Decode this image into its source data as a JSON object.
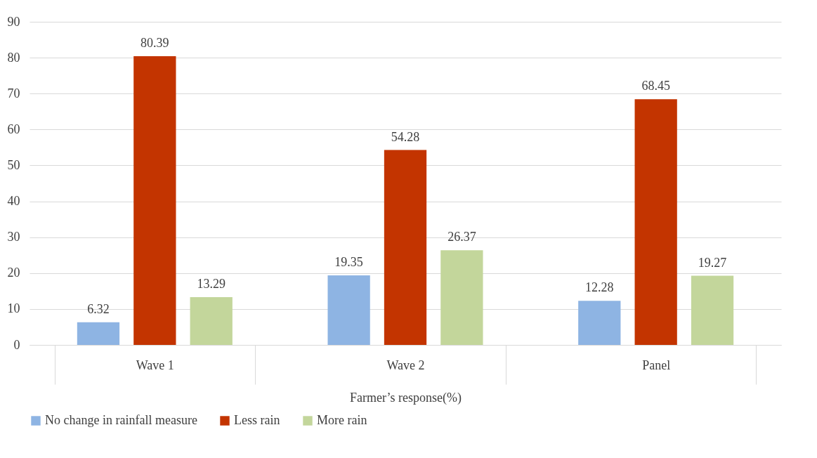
{
  "chart_data": {
    "type": "bar",
    "xlabel": "Farmer’s response(%)",
    "categories": [
      "Wave 1",
      "Wave 2",
      "Panel"
    ],
    "series": [
      {
        "name": "No change in rainfall measure",
        "color": "#8eb4e3",
        "values": [
          6.32,
          19.35,
          12.28
        ]
      },
      {
        "name": "Less rain",
        "color": "#c33400",
        "values": [
          80.39,
          54.28,
          68.45
        ]
      },
      {
        "name": "More rain",
        "color": "#c3d69b",
        "values": [
          13.29,
          26.37,
          19.27
        ]
      }
    ],
    "ylim": [
      0,
      90
    ],
    "yticks": [
      0,
      10,
      20,
      30,
      40,
      50,
      60,
      70,
      80,
      90
    ],
    "grid": "y",
    "legend": "bottom",
    "data_labels": true
  }
}
